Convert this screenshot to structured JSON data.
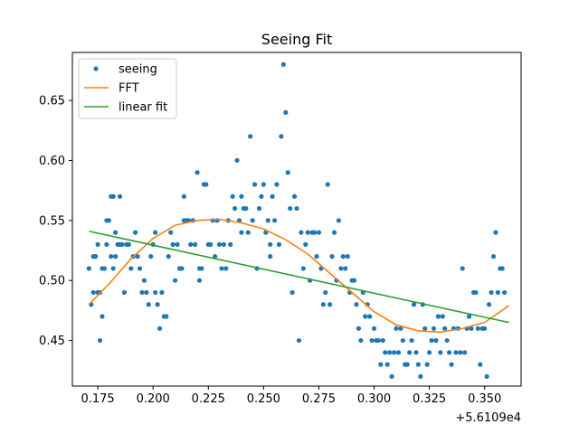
{
  "chart_data": {
    "type": "scatter",
    "title": "Seeing Fit",
    "xlabel": "",
    "ylabel": "",
    "x_offset_label": "+5.6109e4",
    "xlim": [
      0.1635,
      0.3665
    ],
    "ylim": [
      0.412,
      0.69
    ],
    "xticks": [
      {
        "value": 0.175,
        "label": "0.175"
      },
      {
        "value": 0.2,
        "label": "0.200"
      },
      {
        "value": 0.225,
        "label": "0.225"
      },
      {
        "value": 0.25,
        "label": "0.250"
      },
      {
        "value": 0.275,
        "label": "0.275"
      },
      {
        "value": 0.3,
        "label": "0.300"
      },
      {
        "value": 0.325,
        "label": "0.325"
      },
      {
        "value": 0.35,
        "label": "0.350"
      }
    ],
    "yticks": [
      {
        "value": 0.45,
        "label": "0.45"
      },
      {
        "value": 0.5,
        "label": "0.50"
      },
      {
        "value": 0.55,
        "label": "0.55"
      },
      {
        "value": 0.6,
        "label": "0.60"
      },
      {
        "value": 0.65,
        "label": "0.65"
      }
    ],
    "grid": false,
    "legend_position": "upper-left",
    "series": [
      {
        "name": "seeing",
        "kind": "scatter",
        "color": "#1f77b4",
        "points": [
          [
            0.171,
            0.51
          ],
          [
            0.172,
            0.48
          ],
          [
            0.173,
            0.52
          ],
          [
            0.173,
            0.49
          ],
          [
            0.174,
            0.52
          ],
          [
            0.175,
            0.49
          ],
          [
            0.175,
            0.53
          ],
          [
            0.176,
            0.49
          ],
          [
            0.176,
            0.45
          ],
          [
            0.177,
            0.47
          ],
          [
            0.177,
            0.51
          ],
          [
            0.178,
            0.51
          ],
          [
            0.179,
            0.53
          ],
          [
            0.179,
            0.55
          ],
          [
            0.18,
            0.55
          ],
          [
            0.181,
            0.57
          ],
          [
            0.181,
            0.52
          ],
          [
            0.182,
            0.51
          ],
          [
            0.182,
            0.57
          ],
          [
            0.183,
            0.52
          ],
          [
            0.183,
            0.54
          ],
          [
            0.184,
            0.53
          ],
          [
            0.185,
            0.57
          ],
          [
            0.185,
            0.53
          ],
          [
            0.186,
            0.53
          ],
          [
            0.187,
            0.49
          ],
          [
            0.188,
            0.53
          ],
          [
            0.189,
            0.53
          ],
          [
            0.19,
            0.51
          ],
          [
            0.191,
            0.52
          ],
          [
            0.192,
            0.54
          ],
          [
            0.193,
            0.52
          ],
          [
            0.194,
            0.51
          ],
          [
            0.195,
            0.49
          ],
          [
            0.196,
            0.5
          ],
          [
            0.197,
            0.49
          ],
          [
            0.198,
            0.48
          ],
          [
            0.199,
            0.52
          ],
          [
            0.2,
            0.53
          ],
          [
            0.201,
            0.49
          ],
          [
            0.201,
            0.54
          ],
          [
            0.202,
            0.48
          ],
          [
            0.203,
            0.46
          ],
          [
            0.204,
            0.49
          ],
          [
            0.205,
            0.47
          ],
          [
            0.206,
            0.47
          ],
          [
            0.207,
            0.52
          ],
          [
            0.208,
            0.54
          ],
          [
            0.209,
            0.53
          ],
          [
            0.21,
            0.5
          ],
          [
            0.211,
            0.53
          ],
          [
            0.212,
            0.51
          ],
          [
            0.213,
            0.51
          ],
          [
            0.214,
            0.55
          ],
          [
            0.214,
            0.57
          ],
          [
            0.215,
            0.55
          ],
          [
            0.216,
            0.55
          ],
          [
            0.217,
            0.53
          ],
          [
            0.218,
            0.55
          ],
          [
            0.219,
            0.53
          ],
          [
            0.22,
            0.59
          ],
          [
            0.221,
            0.51
          ],
          [
            0.221,
            0.5
          ],
          [
            0.222,
            0.51
          ],
          [
            0.223,
            0.58
          ],
          [
            0.224,
            0.58
          ],
          [
            0.225,
            0.53
          ],
          [
            0.226,
            0.53
          ],
          [
            0.227,
            0.55
          ],
          [
            0.228,
            0.52
          ],
          [
            0.229,
            0.55
          ],
          [
            0.23,
            0.53
          ],
          [
            0.231,
            0.51
          ],
          [
            0.232,
            0.53
          ],
          [
            0.233,
            0.51
          ],
          [
            0.234,
            0.55
          ],
          [
            0.235,
            0.53
          ],
          [
            0.236,
            0.57
          ],
          [
            0.237,
            0.56
          ],
          [
            0.238,
            0.6
          ],
          [
            0.239,
            0.55
          ],
          [
            0.24,
            0.57
          ],
          [
            0.24,
            0.54
          ],
          [
            0.241,
            0.56
          ],
          [
            0.242,
            0.56
          ],
          [
            0.243,
            0.54
          ],
          [
            0.244,
            0.62
          ],
          [
            0.245,
            0.55
          ],
          [
            0.246,
            0.58
          ],
          [
            0.247,
            0.51
          ],
          [
            0.248,
            0.56
          ],
          [
            0.249,
            0.57
          ],
          [
            0.25,
            0.58
          ],
          [
            0.251,
            0.54
          ],
          [
            0.252,
            0.55
          ],
          [
            0.253,
            0.53
          ],
          [
            0.253,
            0.52
          ],
          [
            0.254,
            0.57
          ],
          [
            0.255,
            0.55
          ],
          [
            0.256,
            0.58
          ],
          [
            0.257,
            0.53
          ],
          [
            0.258,
            0.62
          ],
          [
            0.259,
            0.68
          ],
          [
            0.26,
            0.64
          ],
          [
            0.261,
            0.59
          ],
          [
            0.262,
            0.56
          ],
          [
            0.263,
            0.49
          ],
          [
            0.264,
            0.57
          ],
          [
            0.265,
            0.56
          ],
          [
            0.266,
            0.45
          ],
          [
            0.267,
            0.54
          ],
          [
            0.268,
            0.51
          ],
          [
            0.269,
            0.53
          ],
          [
            0.27,
            0.54
          ],
          [
            0.271,
            0.5
          ],
          [
            0.272,
            0.54
          ],
          [
            0.273,
            0.54
          ],
          [
            0.274,
            0.52
          ],
          [
            0.275,
            0.54
          ],
          [
            0.276,
            0.51
          ],
          [
            0.277,
            0.48
          ],
          [
            0.278,
            0.49
          ],
          [
            0.279,
            0.58
          ],
          [
            0.28,
            0.48
          ],
          [
            0.281,
            0.52
          ],
          [
            0.282,
            0.54
          ],
          [
            0.283,
            0.5
          ],
          [
            0.284,
            0.55
          ],
          [
            0.285,
            0.51
          ],
          [
            0.286,
            0.52
          ],
          [
            0.287,
            0.51
          ],
          [
            0.288,
            0.52
          ],
          [
            0.289,
            0.49
          ],
          [
            0.29,
            0.5
          ],
          [
            0.291,
            0.5
          ],
          [
            0.292,
            0.48
          ],
          [
            0.293,
            0.46
          ],
          [
            0.294,
            0.45
          ],
          [
            0.295,
            0.49
          ],
          [
            0.296,
            0.47
          ],
          [
            0.297,
            0.48
          ],
          [
            0.298,
            0.47
          ],
          [
            0.299,
            0.45
          ],
          [
            0.3,
            0.46
          ],
          [
            0.301,
            0.45
          ],
          [
            0.302,
            0.45
          ],
          [
            0.303,
            0.43
          ],
          [
            0.304,
            0.45
          ],
          [
            0.305,
            0.44
          ],
          [
            0.306,
            0.43
          ],
          [
            0.307,
            0.44
          ],
          [
            0.308,
            0.42
          ],
          [
            0.309,
            0.44
          ],
          [
            0.31,
            0.46
          ],
          [
            0.311,
            0.44
          ],
          [
            0.312,
            0.46
          ],
          [
            0.313,
            0.45
          ],
          [
            0.314,
            0.43
          ],
          [
            0.315,
            0.43
          ],
          [
            0.316,
            0.44
          ],
          [
            0.317,
            0.45
          ],
          [
            0.318,
            0.48
          ],
          [
            0.319,
            0.44
          ],
          [
            0.32,
            0.43
          ],
          [
            0.321,
            0.42
          ],
          [
            0.322,
            0.48
          ],
          [
            0.323,
            0.46
          ],
          [
            0.324,
            0.43
          ],
          [
            0.325,
            0.44
          ],
          [
            0.326,
            0.45
          ],
          [
            0.327,
            0.46
          ],
          [
            0.328,
            0.45
          ],
          [
            0.329,
            0.47
          ],
          [
            0.33,
            0.44
          ],
          [
            0.331,
            0.47
          ],
          [
            0.332,
            0.46
          ],
          [
            0.333,
            0.45
          ],
          [
            0.334,
            0.44
          ],
          [
            0.335,
            0.43
          ],
          [
            0.336,
            0.46
          ],
          [
            0.337,
            0.44
          ],
          [
            0.338,
            0.46
          ],
          [
            0.339,
            0.44
          ],
          [
            0.34,
            0.51
          ],
          [
            0.341,
            0.44
          ],
          [
            0.342,
            0.46
          ],
          [
            0.343,
            0.47
          ],
          [
            0.344,
            0.46
          ],
          [
            0.345,
            0.49
          ],
          [
            0.346,
            0.49
          ],
          [
            0.347,
            0.46
          ],
          [
            0.348,
            0.43
          ],
          [
            0.349,
            0.46
          ],
          [
            0.35,
            0.46
          ],
          [
            0.351,
            0.42
          ],
          [
            0.352,
            0.48
          ],
          [
            0.353,
            0.49
          ],
          [
            0.354,
            0.52
          ],
          [
            0.355,
            0.54
          ],
          [
            0.356,
            0.49
          ],
          [
            0.357,
            0.51
          ],
          [
            0.358,
            0.51
          ],
          [
            0.359,
            0.49
          ]
        ]
      },
      {
        "name": "FFT",
        "kind": "line",
        "color": "#ff7f0e",
        "points": [
          [
            0.171,
            0.48
          ],
          [
            0.18,
            0.497
          ],
          [
            0.19,
            0.518
          ],
          [
            0.2,
            0.535
          ],
          [
            0.21,
            0.546
          ],
          [
            0.22,
            0.55
          ],
          [
            0.23,
            0.551
          ],
          [
            0.24,
            0.548
          ],
          [
            0.25,
            0.543
          ],
          [
            0.26,
            0.534
          ],
          [
            0.27,
            0.522
          ],
          [
            0.28,
            0.506
          ],
          [
            0.29,
            0.49
          ],
          [
            0.3,
            0.474
          ],
          [
            0.31,
            0.463
          ],
          [
            0.32,
            0.458
          ],
          [
            0.33,
            0.457
          ],
          [
            0.34,
            0.46
          ],
          [
            0.35,
            0.465
          ],
          [
            0.361,
            0.479
          ]
        ]
      },
      {
        "name": "linear fit",
        "kind": "line",
        "color": "#2ca02c",
        "points": [
          [
            0.171,
            0.541
          ],
          [
            0.361,
            0.465
          ]
        ]
      }
    ]
  }
}
